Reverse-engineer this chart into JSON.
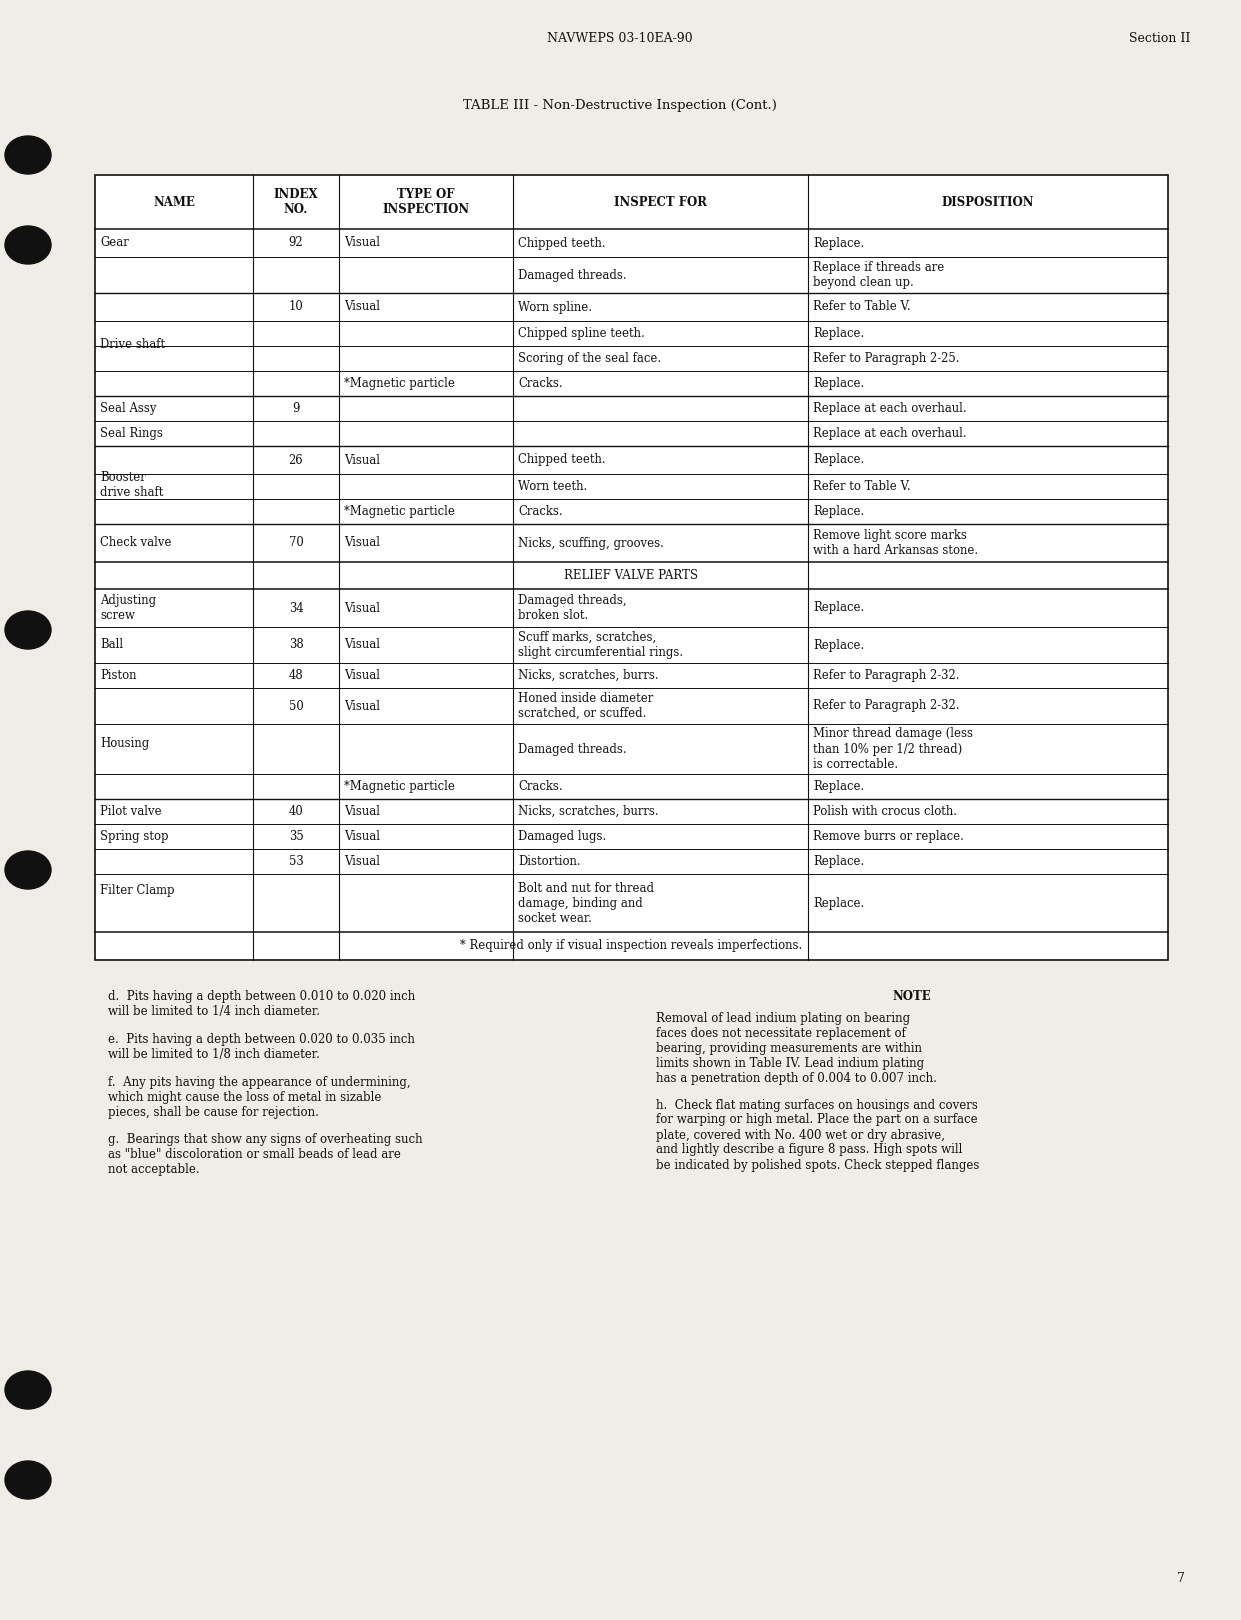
{
  "page_bg": "#f0ede8",
  "header_center": "NAVWEPS 03-10EA-90",
  "header_right": "Section II",
  "table_title": "TABLE III - Non-Destructive Inspection (Cont.)",
  "page_number": "7",
  "col_headers": [
    "NAME",
    "INDEX\nNO.",
    "TYPE OF\nINSPECTION",
    "INSPECT FOR",
    "DISPOSITION"
  ],
  "footnote_left": [
    "d.  Pits having a depth between 0.010 to 0.020 inch\nwill be limited to 1/4 inch diameter.",
    "e.  Pits having a depth between 0.020 to 0.035 inch\nwill be limited to 1/8 inch diameter.",
    "f.  Any pits having the appearance of undermining,\nwhich might cause the loss of metal in sizable\npieces, shall be cause for rejection.",
    "g.  Bearings that show any signs of overheating such\nas \"blue\" discoloration or small beads of lead are\nnot acceptable."
  ],
  "footnote_right_title": "NOTE",
  "footnote_right_para1": "Removal of lead indium plating on bearing\nfaces does not necessitate replacement of\nbearing, providing measurements are within\nlimits shown in Table IV. Lead indium plating\nhas a penetration depth of 0.004 to 0.007 inch.",
  "footnote_right_para2": "h.  Check flat mating surfaces on housings and covers\nfor warping or high metal. Place the part on a surface\nplate, covered with No. 400 wet or dry abrasive,\nand lightly describe a figure 8 pass. High spots will\nbe indicated by polished spots. Check stepped flanges"
}
